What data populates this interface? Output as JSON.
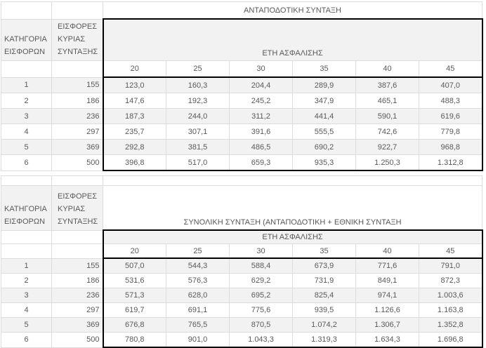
{
  "colors": {
    "text": "#595959",
    "stripe": "#f2f2f2",
    "border_light": "#dcdcdc",
    "border_black": "#000000",
    "background": "#ffffff"
  },
  "shared": {
    "category_header": "ΚΑΤΗΓΟΡΙΑ ΕΙΣΦΟΡΩΝ",
    "contrib_header": "ΕΙΣΦΟΡΕΣ ΚΥΡΙΑΣ ΣΥΝΤΑΞΗΣ",
    "years_header": "ΕΤΗ ΑΣΦΑΛΙΣΗΣ",
    "year_columns": [
      "20",
      "25",
      "30",
      "35",
      "40",
      "45"
    ]
  },
  "table1": {
    "title": "ΑΝΤΑΠΟΔΟΤΙΚΗ ΣΥΝΤΑΞΗ",
    "rows": [
      {
        "category": "1",
        "contribution": "155",
        "values": [
          "123,0",
          "160,3",
          "204,4",
          "289,9",
          "387,6",
          "407,0"
        ]
      },
      {
        "category": "2",
        "contribution": "186",
        "values": [
          "147,6",
          "192,3",
          "245,2",
          "347,9",
          "465,1",
          "488,3"
        ]
      },
      {
        "category": "3",
        "contribution": "236",
        "values": [
          "187,3",
          "244,0",
          "311,2",
          "441,4",
          "590,1",
          "619,6"
        ]
      },
      {
        "category": "4",
        "contribution": "297",
        "values": [
          "235,7",
          "307,1",
          "391,6",
          "555,5",
          "742,6",
          "779,8"
        ]
      },
      {
        "category": "5",
        "contribution": "369",
        "values": [
          "292,8",
          "381,5",
          "486,5",
          "690,2",
          "922,7",
          "968,8"
        ]
      },
      {
        "category": "6",
        "contribution": "500",
        "values": [
          "396,8",
          "517,0",
          "659,3",
          "935,3",
          "1.250,3",
          "1.312,8"
        ]
      }
    ]
  },
  "table2": {
    "title": "ΣΥΝΟΛΙΚΗ ΣΥΝΤΑΞΗ (ΑΝΤΑΠΟΔΟΤΙΚΗ + ΕΘΝΙΚΗ ΣΥΝΤΑΞΗ",
    "rows": [
      {
        "category": "1",
        "contribution": "155",
        "values": [
          "507,0",
          "544,3",
          "588,4",
          "673,9",
          "771,6",
          "791,0"
        ]
      },
      {
        "category": "2",
        "contribution": "186",
        "values": [
          "531,6",
          "576,3",
          "629,2",
          "731,9",
          "849,1",
          "872,3"
        ]
      },
      {
        "category": "3",
        "contribution": "236",
        "values": [
          "571,3",
          "628,0",
          "695,2",
          "825,4",
          "974,1",
          "1.003,6"
        ]
      },
      {
        "category": "4",
        "contribution": "297",
        "values": [
          "619,7",
          "691,1",
          "775,6",
          "939,5",
          "1.126,6",
          "1.163,8"
        ]
      },
      {
        "category": "5",
        "contribution": "369",
        "values": [
          "676,8",
          "765,5",
          "870,5",
          "1.074,2",
          "1.306,7",
          "1.352,8"
        ]
      },
      {
        "category": "6",
        "contribution": "500",
        "values": [
          "780,8",
          "901,0",
          "1.043,3",
          "1.319,3",
          "1.634,3",
          "1.696,8"
        ]
      }
    ]
  }
}
